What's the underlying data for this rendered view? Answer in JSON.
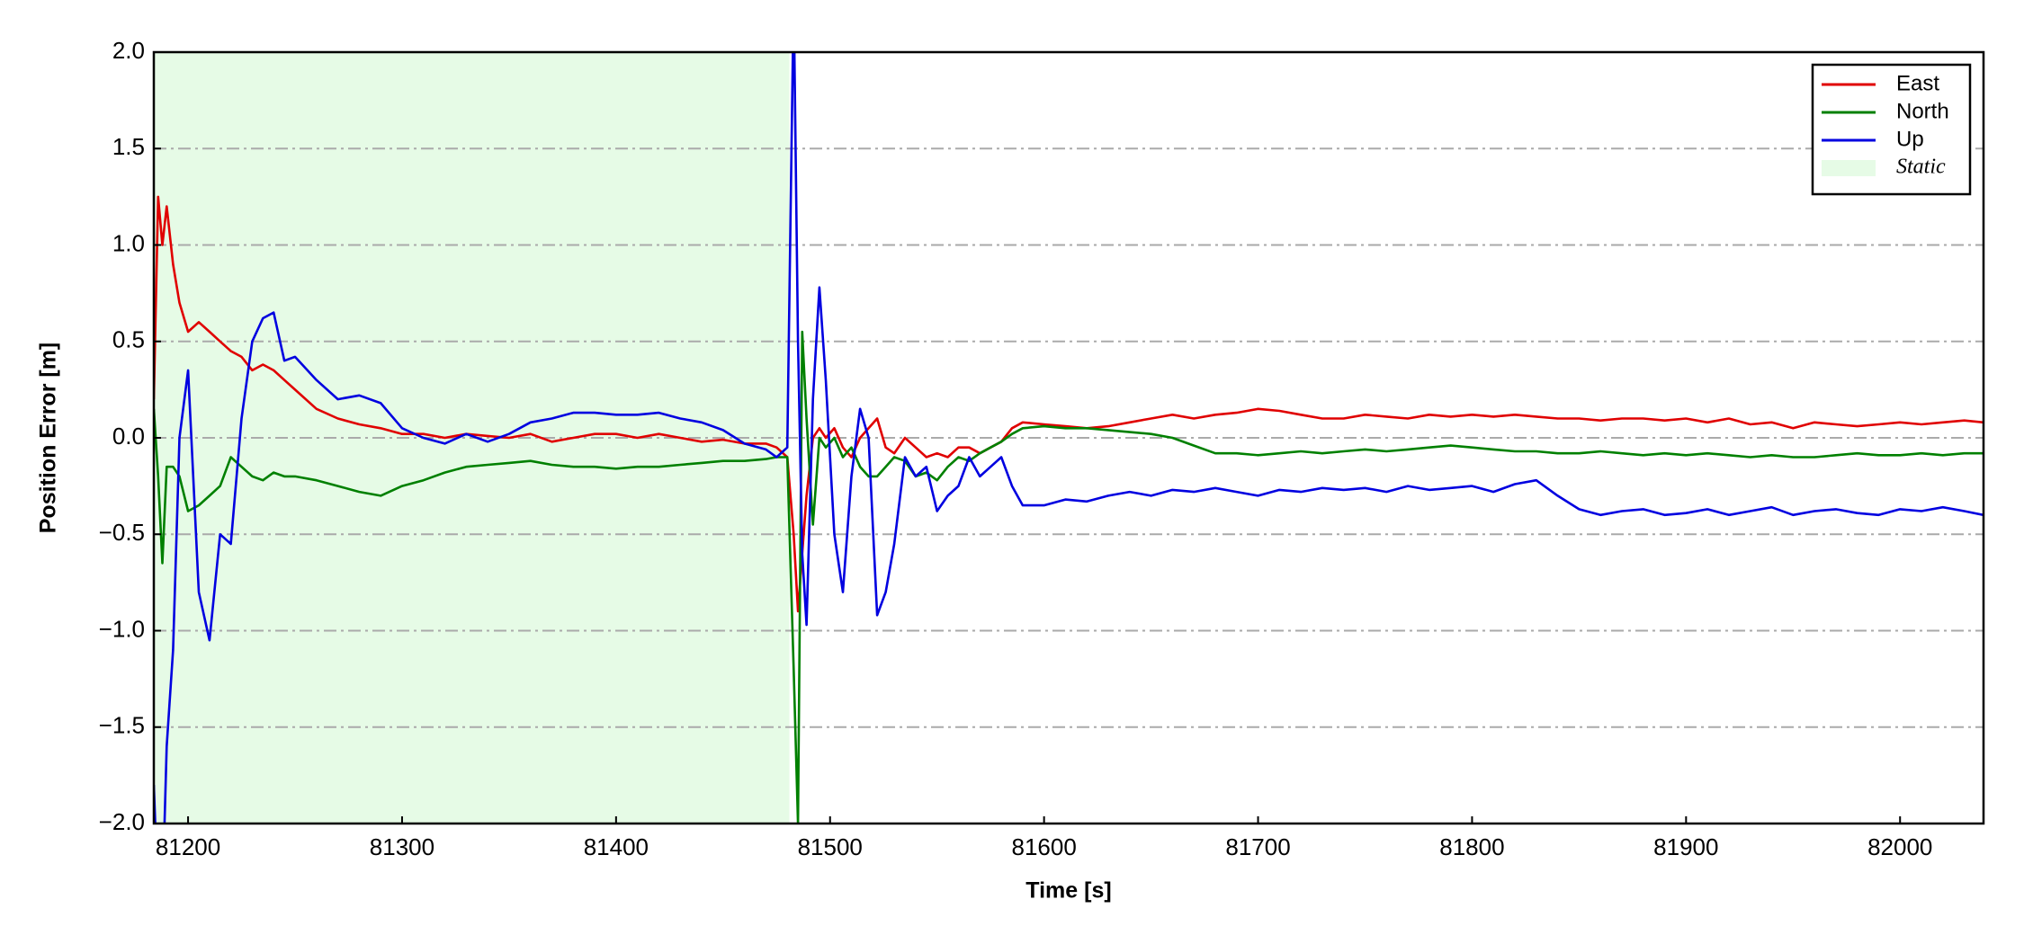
{
  "chart_data": {
    "type": "line",
    "xlabel": "Time [s]",
    "ylabel": "Position Error [m]",
    "xlim": [
      81184,
      82039
    ],
    "ylim": [
      -2,
      2
    ],
    "xticks": [
      81200,
      81300,
      81400,
      81500,
      81600,
      81700,
      81800,
      81900,
      82000
    ],
    "yticks": [
      {
        "value": -2,
        "label": "−2.0"
      },
      {
        "value": -1.5,
        "label": "−1.5"
      },
      {
        "value": -1,
        "label": "−1.0"
      },
      {
        "value": -0.5,
        "label": "−0.5"
      },
      {
        "value": 0,
        "label": "0.0"
      },
      {
        "value": 0.5,
        "label": "0.5"
      },
      {
        "value": 1,
        "label": "1.0"
      },
      {
        "value": 1.5,
        "label": "1.5"
      },
      {
        "value": 2,
        "label": "2.0"
      }
    ],
    "grid": true,
    "legend_position": "upper right",
    "shaded_regions": [
      {
        "xmin": 81184,
        "xmax": 81481,
        "label": "Static",
        "color": "#e6fbe6"
      }
    ],
    "x": [
      81184,
      81186,
      81188,
      81190,
      81193,
      81196,
      81200,
      81205,
      81210,
      81215,
      81220,
      81225,
      81230,
      81235,
      81240,
      81245,
      81250,
      81260,
      81270,
      81280,
      81290,
      81300,
      81310,
      81320,
      81330,
      81340,
      81350,
      81360,
      81370,
      81380,
      81390,
      81400,
      81410,
      81420,
      81430,
      81440,
      81450,
      81460,
      81470,
      81475,
      81480,
      81483,
      81485,
      81487,
      81489,
      81492,
      81495,
      81498,
      81502,
      81506,
      81510,
      81514,
      81518,
      81522,
      81526,
      81530,
      81535,
      81540,
      81545,
      81550,
      81555,
      81560,
      81565,
      81570,
      81575,
      81580,
      81585,
      81590,
      81600,
      81610,
      81620,
      81630,
      81640,
      81650,
      81660,
      81670,
      81680,
      81690,
      81700,
      81710,
      81720,
      81730,
      81740,
      81750,
      81760,
      81770,
      81780,
      81790,
      81800,
      81810,
      81820,
      81830,
      81840,
      81850,
      81860,
      81870,
      81880,
      81890,
      81900,
      81910,
      81920,
      81930,
      81940,
      81950,
      81960,
      81970,
      81980,
      81990,
      82000,
      82010,
      82020,
      82030,
      82039
    ],
    "series": [
      {
        "name": "East",
        "color": "#e00000",
        "values": [
          0.2,
          1.25,
          1.0,
          1.2,
          0.9,
          0.7,
          0.55,
          0.6,
          0.55,
          0.5,
          0.45,
          0.42,
          0.35,
          0.38,
          0.35,
          0.3,
          0.25,
          0.15,
          0.1,
          0.07,
          0.05,
          0.02,
          0.02,
          0.0,
          0.02,
          0.01,
          0.0,
          0.02,
          -0.02,
          0.0,
          0.02,
          0.02,
          0.0,
          0.02,
          0.0,
          -0.02,
          -0.01,
          -0.03,
          -0.03,
          -0.05,
          -0.1,
          -0.5,
          -0.9,
          -0.6,
          -0.3,
          0.0,
          0.05,
          0.0,
          0.05,
          -0.05,
          -0.1,
          0.0,
          0.05,
          0.1,
          -0.05,
          -0.08,
          0.0,
          -0.05,
          -0.1,
          -0.08,
          -0.1,
          -0.05,
          -0.05,
          -0.08,
          -0.05,
          -0.02,
          0.05,
          0.08,
          0.07,
          0.06,
          0.05,
          0.06,
          0.08,
          0.1,
          0.12,
          0.1,
          0.12,
          0.13,
          0.15,
          0.14,
          0.12,
          0.1,
          0.1,
          0.12,
          0.11,
          0.1,
          0.12,
          0.11,
          0.12,
          0.11,
          0.12,
          0.11,
          0.1,
          0.1,
          0.09,
          0.1,
          0.1,
          0.09,
          0.1,
          0.08,
          0.1,
          0.07,
          0.08,
          0.05,
          0.08,
          0.07,
          0.06,
          0.07,
          0.08,
          0.07,
          0.08,
          0.09,
          0.08
        ]
      },
      {
        "name": "North",
        "color": "#008000",
        "values": [
          0.15,
          -0.2,
          -0.65,
          -0.15,
          -0.15,
          -0.2,
          -0.38,
          -0.35,
          -0.3,
          -0.25,
          -0.1,
          -0.15,
          -0.2,
          -0.22,
          -0.18,
          -0.2,
          -0.2,
          -0.22,
          -0.25,
          -0.28,
          -0.3,
          -0.25,
          -0.22,
          -0.18,
          -0.15,
          -0.14,
          -0.13,
          -0.12,
          -0.14,
          -0.15,
          -0.15,
          -0.16,
          -0.15,
          -0.15,
          -0.14,
          -0.13,
          -0.12,
          -0.12,
          -0.11,
          -0.1,
          -0.1,
          -1.2,
          -2.0,
          0.55,
          0.1,
          -0.45,
          0.0,
          -0.05,
          0.0,
          -0.1,
          -0.05,
          -0.15,
          -0.2,
          -0.2,
          -0.15,
          -0.1,
          -0.12,
          -0.2,
          -0.18,
          -0.22,
          -0.15,
          -0.1,
          -0.12,
          -0.08,
          -0.05,
          -0.02,
          0.02,
          0.05,
          0.06,
          0.05,
          0.05,
          0.04,
          0.03,
          0.02,
          0.0,
          -0.04,
          -0.08,
          -0.08,
          -0.09,
          -0.08,
          -0.07,
          -0.08,
          -0.07,
          -0.06,
          -0.07,
          -0.06,
          -0.05,
          -0.04,
          -0.05,
          -0.06,
          -0.07,
          -0.07,
          -0.08,
          -0.08,
          -0.07,
          -0.08,
          -0.09,
          -0.08,
          -0.09,
          -0.08,
          -0.09,
          -0.1,
          -0.09,
          -0.1,
          -0.1,
          -0.09,
          -0.08,
          -0.09,
          -0.09,
          -0.08,
          -0.09,
          -0.08,
          -0.08
        ]
      },
      {
        "name": "Up",
        "color": "#0000e0",
        "values": [
          -1.8,
          -2.4,
          -2.4,
          -1.6,
          -1.1,
          0.0,
          0.35,
          -0.8,
          -1.05,
          -0.5,
          -0.55,
          0.1,
          0.5,
          0.62,
          0.65,
          0.4,
          0.42,
          0.3,
          0.2,
          0.22,
          0.18,
          0.05,
          0.0,
          -0.03,
          0.02,
          -0.02,
          0.02,
          0.08,
          0.1,
          0.13,
          0.13,
          0.12,
          0.12,
          0.13,
          0.1,
          0.08,
          0.04,
          -0.03,
          -0.06,
          -0.1,
          -0.05,
          2.3,
          0.5,
          -0.6,
          -0.97,
          0.2,
          0.78,
          0.3,
          -0.5,
          -0.8,
          -0.2,
          0.15,
          0.0,
          -0.92,
          -0.8,
          -0.55,
          -0.1,
          -0.2,
          -0.15,
          -0.38,
          -0.3,
          -0.25,
          -0.1,
          -0.2,
          -0.15,
          -0.1,
          -0.25,
          -0.35,
          -0.35,
          -0.32,
          -0.33,
          -0.3,
          -0.28,
          -0.3,
          -0.27,
          -0.28,
          -0.26,
          -0.28,
          -0.3,
          -0.27,
          -0.28,
          -0.26,
          -0.27,
          -0.26,
          -0.28,
          -0.25,
          -0.27,
          -0.26,
          -0.25,
          -0.28,
          -0.24,
          -0.22,
          -0.3,
          -0.37,
          -0.4,
          -0.38,
          -0.37,
          -0.4,
          -0.39,
          -0.37,
          -0.4,
          -0.38,
          -0.36,
          -0.4,
          -0.38,
          -0.37,
          -0.39,
          -0.4,
          -0.37,
          -0.38,
          -0.36,
          -0.38,
          -0.4
        ]
      }
    ]
  }
}
